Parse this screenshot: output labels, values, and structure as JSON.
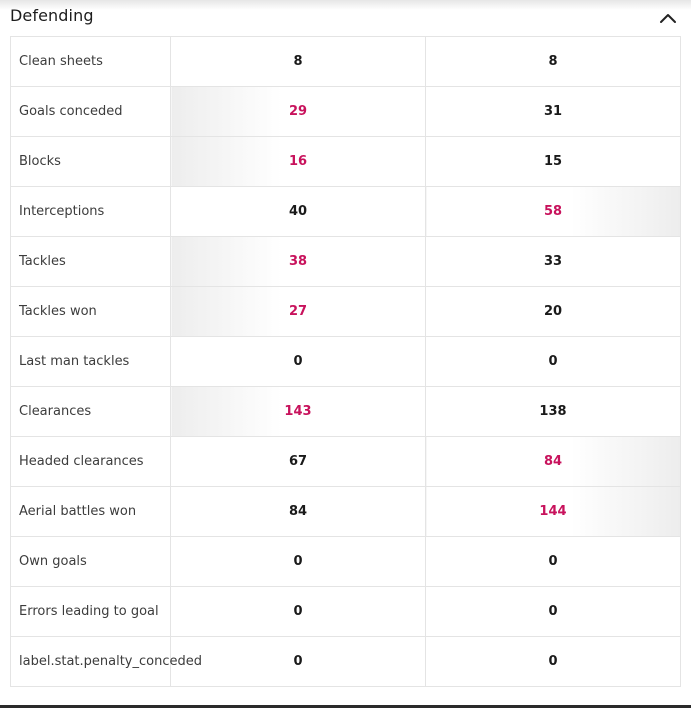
{
  "section": {
    "title": "Defending",
    "toggle_icon": "chevron-up-icon"
  },
  "colors": {
    "leader": "#c8125c",
    "text": "#1a1a1a",
    "border": "#e4e4e4"
  },
  "stats": [
    {
      "label": "Clean sheets",
      "home": "8",
      "away": "8",
      "leader": "none"
    },
    {
      "label": "Goals conceded",
      "home": "29",
      "away": "31",
      "leader": "home"
    },
    {
      "label": "Blocks",
      "home": "16",
      "away": "15",
      "leader": "home"
    },
    {
      "label": "Interceptions",
      "home": "40",
      "away": "58",
      "leader": "away"
    },
    {
      "label": "Tackles",
      "home": "38",
      "away": "33",
      "leader": "home"
    },
    {
      "label": "Tackles won",
      "home": "27",
      "away": "20",
      "leader": "home"
    },
    {
      "label": "Last man tackles",
      "home": "0",
      "away": "0",
      "leader": "none"
    },
    {
      "label": "Clearances",
      "home": "143",
      "away": "138",
      "leader": "home"
    },
    {
      "label": "Headed clearances",
      "home": "67",
      "away": "84",
      "leader": "away"
    },
    {
      "label": "Aerial battles won",
      "home": "84",
      "away": "144",
      "leader": "away"
    },
    {
      "label": "Own goals",
      "home": "0",
      "away": "0",
      "leader": "none"
    },
    {
      "label": "Errors leading to goal",
      "home": "0",
      "away": "0",
      "leader": "none"
    },
    {
      "label": "label.stat.penalty_conceded",
      "home": "0",
      "away": "0",
      "leader": "none"
    }
  ]
}
